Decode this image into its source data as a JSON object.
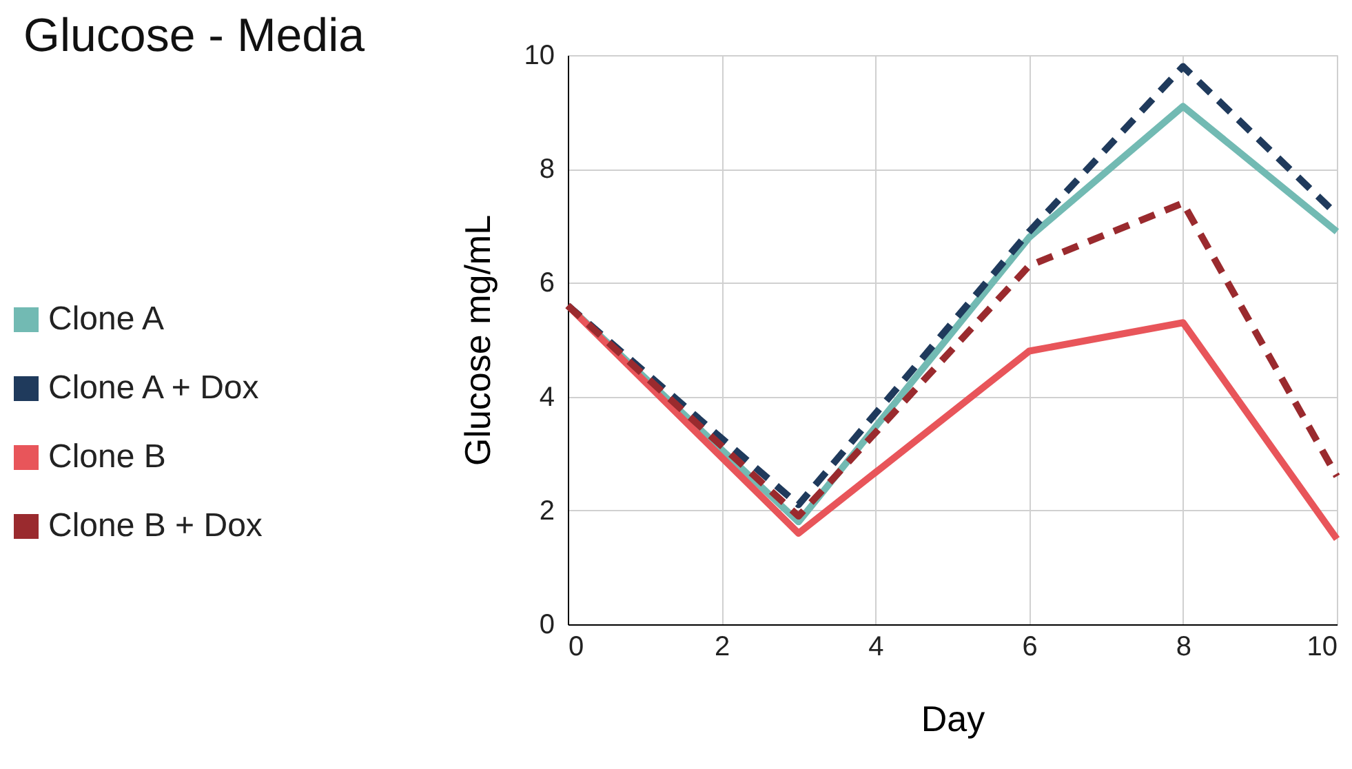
{
  "chart_data": {
    "type": "line",
    "title": "Glucose - Media",
    "xlabel": "Day",
    "ylabel": "Glucose mg/mL",
    "x": [
      0,
      3,
      6,
      8,
      10
    ],
    "series": [
      {
        "name": "Clone A",
        "color": "#72bab3",
        "line_style": "solid",
        "values": [
          5.6,
          1.8,
          6.8,
          9.1,
          6.9
        ]
      },
      {
        "name": "Clone A + Dox",
        "color": "#1f3a5c",
        "line_style": "dashed",
        "values": [
          5.6,
          2.1,
          6.9,
          9.8,
          7.2
        ]
      },
      {
        "name": "Clone B",
        "color": "#e8555a",
        "line_style": "solid",
        "values": [
          5.6,
          1.6,
          4.8,
          5.3,
          1.5
        ]
      },
      {
        "name": "Clone B + Dox",
        "color": "#9a2a2e",
        "line_style": "dashed",
        "values": [
          5.6,
          1.9,
          6.3,
          7.4,
          2.6
        ]
      }
    ],
    "xlim": [
      0,
      10
    ],
    "xticks": [
      0,
      2,
      4,
      6,
      8,
      10
    ],
    "ylim": [
      0,
      10
    ],
    "yticks": [
      0,
      2,
      4,
      6,
      8,
      10
    ],
    "grid": true,
    "legend": "left",
    "marker": "none"
  }
}
